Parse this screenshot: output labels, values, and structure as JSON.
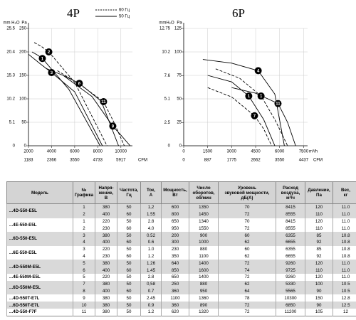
{
  "chart_data": [
    {
      "type": "line",
      "title": "4P",
      "y2_label": "mm H₂O",
      "y_label": "Pa",
      "x2_label": "CFM",
      "xlim": [
        2000,
        11000
      ],
      "xticks": [
        2000,
        4000,
        6000,
        8000,
        10000
      ],
      "x2lim": [
        1183,
        6507
      ],
      "x2ticks": [
        1183,
        2366,
        3550,
        4733,
        5917
      ],
      "ylim": [
        0,
        250
      ],
      "yticks": [
        0,
        50,
        100,
        150,
        200,
        250
      ],
      "y2lim": [
        0,
        25.5
      ],
      "y2ticks": [
        0,
        5.1,
        10.2,
        15.3,
        20.4,
        25.5
      ],
      "grid": true,
      "legend": [
        {
          "name": "60 Гц",
          "dashed": true
        },
        {
          "name": "50 Гц",
          "dashed": false
        }
      ],
      "series": [
        {
          "name": "1",
          "color": "#000000",
          "dashed": false,
          "x": [
            2300,
            2800,
            3200,
            5500,
            8200
          ],
          "values": [
            200,
            193,
            186,
            120,
            0
          ]
        },
        {
          "name": "2",
          "color": "#000000",
          "dashed": true,
          "x": [
            2500,
            3100,
            3760,
            6000,
            8800
          ],
          "values": [
            220,
            212,
            200,
            135,
            0
          ]
        },
        {
          "name": "3",
          "color": "#000000",
          "dashed": false,
          "x": [
            2000,
            3000,
            4000,
            6000,
            8400
          ],
          "values": [
            195,
            175,
            156,
            115,
            0
          ]
        },
        {
          "name": "6",
          "color": "#000000",
          "dashed": false,
          "x": [
            3500,
            5000,
            6400,
            8300,
            9800
          ],
          "values": [
            165,
            150,
            133,
            95,
            0
          ]
        },
        {
          "name": "11",
          "color": "#000000",
          "dashed": true,
          "x": [
            4500,
            6500,
            8500,
            9400,
            10300
          ],
          "values": [
            160,
            130,
            94,
            50,
            0
          ]
        },
        {
          "name": "9",
          "color": "#000000",
          "dashed": false,
          "x": [
            5000,
            7500,
            9300,
            10100,
            10800
          ],
          "values": [
            150,
            105,
            42,
            20,
            0
          ]
        }
      ]
    },
    {
      "type": "line",
      "title": "6P",
      "y2_label": "mmH₂O",
      "y_label": "Pa",
      "x_label": "m³/h",
      "x2_label": "CFM",
      "xlim": [
        0,
        7750
      ],
      "xticks": [
        0,
        1500,
        3000,
        4500,
        6000,
        7500
      ],
      "x2lim": [
        0,
        4585
      ],
      "x2ticks": [
        0,
        887,
        1775,
        2662,
        3550,
        4437
      ],
      "ylim": [
        0,
        125
      ],
      "yticks": [
        0,
        25,
        50,
        75,
        100,
        125
      ],
      "y2lim": [
        0,
        12.75
      ],
      "y2ticks": [
        0,
        2.5,
        5.1,
        7.6,
        10.2,
        12.75
      ],
      "grid": true,
      "series": [
        {
          "name": "4",
          "color": "#000000",
          "dashed": false,
          "x": [
            1200,
            3000,
            4660,
            5700,
            6300
          ],
          "values": [
            92,
            88,
            80,
            55,
            0
          ]
        },
        {
          "name": "1",
          "color": "#000000",
          "dashed": false,
          "x": [
            1500,
            3000,
            4070,
            5000,
            5700
          ],
          "values": [
            75,
            68,
            53,
            28,
            0
          ]
        },
        {
          "name": "5",
          "color": "#000000",
          "dashed": true,
          "x": [
            2000,
            3500,
            4840,
            5700,
            6500
          ],
          "values": [
            82,
            72,
            53,
            28,
            0
          ]
        },
        {
          "name": "11",
          "color": "#000000",
          "dashed": false,
          "x": [
            3000,
            4500,
            5900,
            6500,
            7000
          ],
          "values": [
            62,
            56,
            45,
            25,
            0
          ]
        },
        {
          "name": "7",
          "color": "#000000",
          "dashed": true,
          "x": [
            1500,
            3000,
            4430,
            5000,
            5500
          ],
          "values": [
            62,
            52,
            32,
            18,
            0
          ]
        }
      ]
    }
  ],
  "table": {
    "columns": [
      "Модель",
      "№\nГрафика",
      "Напря-\nжение,\nВ",
      "Частота,\nГц",
      "Ток,\nА",
      "Мощность,\nВт",
      "Число\nоборотов,\nоб/мин",
      "Уровень\nзвуковой мощности,\nдБ(А)",
      "Расход\nвоздуха,\nм³/ч",
      "Давление,\nПа",
      "Вес,\nкг"
    ],
    "groups": [
      {
        "model": "...4D-550-E5L",
        "rows": [
          [
            "1",
            "380",
            "50",
            "1,2",
            "600",
            "1350",
            "70",
            "8415",
            "120",
            "11.0"
          ],
          [
            "2",
            "400",
            "60",
            "1.55",
            "800",
            "1450",
            "72",
            "8555",
            "110",
            "11.0"
          ]
        ]
      },
      {
        "model": "...4E-550-E5L",
        "rows": [
          [
            "1",
            "220",
            "50",
            "2.8",
            "650",
            "1340",
            "70",
            "8415",
            "120",
            "11.0"
          ],
          [
            "2",
            "230",
            "60",
            "4.0",
            "950",
            "1550",
            "72",
            "8555",
            "110",
            "11.0"
          ]
        ]
      },
      {
        "model": "...6D-550-E5L",
        "rows": [
          [
            "3",
            "380",
            "50",
            "0.52",
            "200",
            "900",
            "60",
            "6355",
            "85",
            "10.8"
          ],
          [
            "4",
            "400",
            "60",
            "0.6",
            "300",
            "1000",
            "62",
            "6655",
            "92",
            "10.8"
          ]
        ]
      },
      {
        "model": "...6E-550-E5L",
        "rows": [
          [
            "3",
            "220",
            "50",
            "1.0",
            "230",
            "880",
            "60",
            "6355",
            "85",
            "10.8"
          ],
          [
            "4",
            "230",
            "60",
            "1.2",
            "350",
            "1100",
            "62",
            "6655",
            "92",
            "10.8"
          ]
        ]
      },
      {
        "model": "...4D-550M-E5L",
        "rows": [
          [
            "5",
            "380",
            "50",
            "1.26",
            "640",
            "1400",
            "72",
            "9260",
            "120",
            "11.0"
          ],
          [
            "6",
            "400",
            "60",
            "1.45",
            "850",
            "1600",
            "74",
            "9725",
            "110",
            "11.0"
          ]
        ]
      },
      {
        "model": "...4E-550M-E5L",
        "rows": [
          [
            "5",
            "220",
            "50",
            "2.8",
            "650",
            "1400",
            "72",
            "9260",
            "120",
            "11.0"
          ]
        ]
      },
      {
        "model": "...6D-550M-E5L",
        "rows": [
          [
            "7",
            "380",
            "50",
            "0,58",
            "250",
            "880",
            "62",
            "5330",
            "100",
            "10.5"
          ],
          [
            "8",
            "400",
            "60",
            "0.7",
            "360",
            "950",
            "64",
            "5565",
            "90",
            "10.5"
          ]
        ]
      },
      {
        "model": "...4D-550T-E7L",
        "rows": [
          [
            "9",
            "380",
            "50",
            "2.45",
            "1100",
            "1360",
            "78",
            "10300",
            "150",
            "12.8"
          ]
        ]
      },
      {
        "model": "...6D-550T-E7L",
        "rows": [
          [
            "10",
            "380",
            "50",
            "0.9",
            "360",
            "890",
            "72",
            "6850",
            "90",
            "12.5"
          ]
        ]
      },
      {
        "model": "...4D-550-F7F",
        "rows": [
          [
            "11",
            "380",
            "50",
            "1.2",
            "620",
            "1320",
            "72",
            "11200",
            "105",
            "12"
          ]
        ]
      }
    ]
  }
}
